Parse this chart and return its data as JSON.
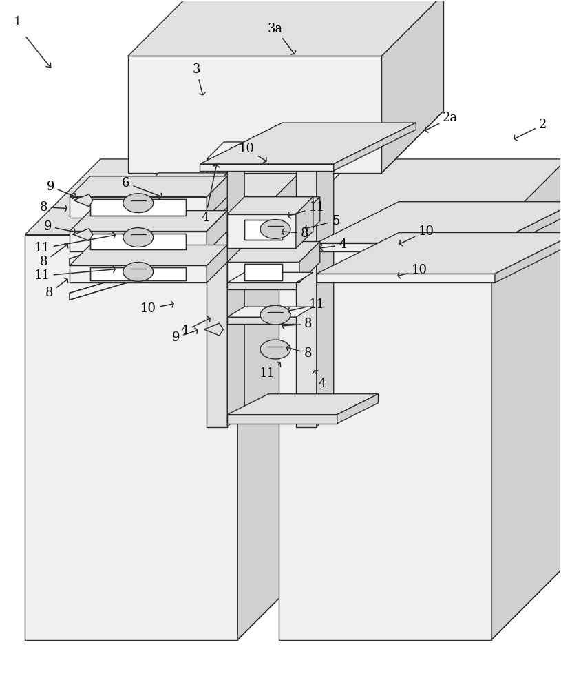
{
  "fig_width": 8.15,
  "fig_height": 10.0,
  "dpi": 100,
  "bg_color": "#ffffff",
  "line_color": "#2a2a2a",
  "line_width": 1.0
}
